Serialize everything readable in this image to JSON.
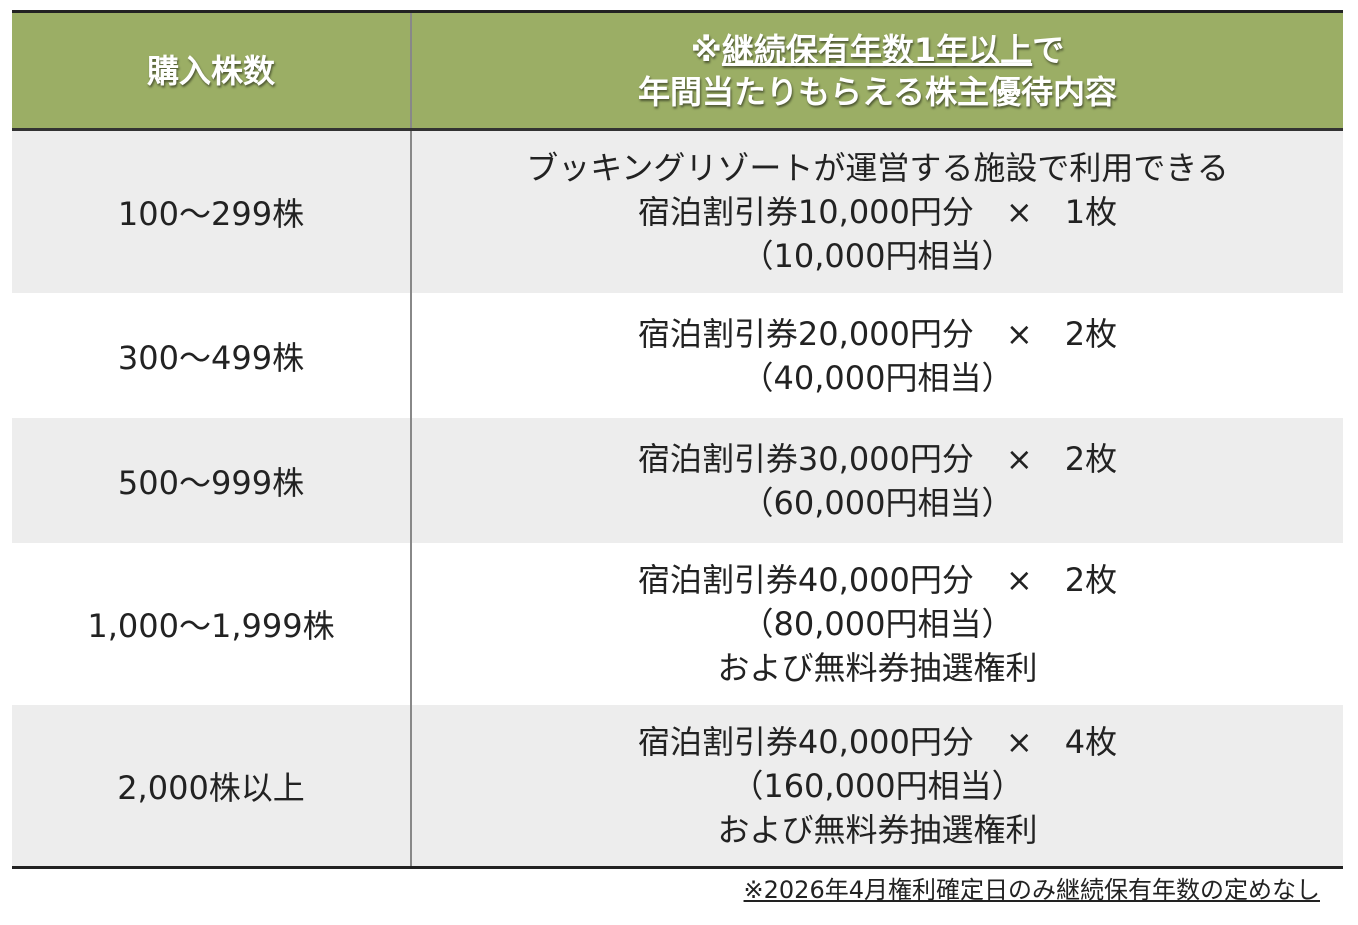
{
  "table": {
    "header": [
      {
        "lines": [
          {
            "parts": [
              {
                "text": "購入株数"
              }
            ]
          }
        ]
      },
      {
        "lines": [
          {
            "parts": [
              {
                "text": "※"
              },
              {
                "text": "継続保有年数1年以上",
                "underline": true
              },
              {
                "text": "で"
              }
            ]
          },
          {
            "parts": [
              {
                "text": "年間当たりもらえる株主優待内容"
              }
            ]
          }
        ]
      }
    ],
    "rows": [
      [
        "100～299株",
        [
          "ブッキングリゾートが運営する施設で利用できる",
          "宿泊割引券10,000円分　×　1枚",
          "（10,000円相当）"
        ]
      ],
      [
        "300～499株",
        [
          "宿泊割引券20,000円分　×　2枚",
          "（40,000円相当）"
        ]
      ],
      [
        "500～999株",
        [
          "宿泊割引券30,000円分　×　2枚",
          "（60,000円相当）"
        ]
      ],
      [
        "1,000～1,999株",
        [
          "宿泊割引券40,000円分　×　2枚",
          "（80,000円相当）",
          "および無料券抽選権利"
        ]
      ],
      [
        "2,000株以上",
        [
          "宿泊割引券40,000円分　×　4枚",
          "（160,000円相当）",
          "および無料券抽選権利"
        ]
      ]
    ]
  },
  "footnote": "※2026年4月権利確定日のみ継続保有年数の定めなし"
}
